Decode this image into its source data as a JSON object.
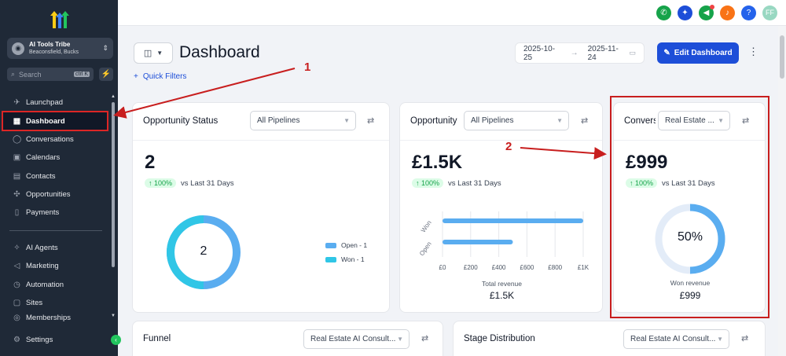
{
  "sidebar": {
    "account": {
      "name": "AI Tools Tribe",
      "location": "Beaconsfield, Bucks"
    },
    "search": {
      "placeholder": "Search",
      "shortcut": "ctrl K"
    },
    "items": [
      {
        "label": "Launchpad",
        "icon": "rocket-icon"
      },
      {
        "label": "Dashboard",
        "icon": "grid-icon"
      },
      {
        "label": "Conversations",
        "icon": "chat-icon"
      },
      {
        "label": "Calendars",
        "icon": "calendar-icon"
      },
      {
        "label": "Contacts",
        "icon": "contacts-icon"
      },
      {
        "label": "Opportunities",
        "icon": "opportunities-icon"
      },
      {
        "label": "Payments",
        "icon": "payments-icon"
      },
      {
        "label": "AI Agents",
        "icon": "sparkles-icon"
      },
      {
        "label": "Marketing",
        "icon": "megaphone-icon"
      },
      {
        "label": "Automation",
        "icon": "automation-icon"
      },
      {
        "label": "Sites",
        "icon": "sites-icon"
      },
      {
        "label": "Memberships",
        "icon": "memberships-icon"
      },
      {
        "label": "Settings",
        "icon": "gear-icon"
      }
    ]
  },
  "topbar": {
    "avatar_initials": "FF",
    "help": "?",
    "colors": {
      "phone": "#16a34a",
      "magic": "#1d4ed8",
      "announce": "#16a34a",
      "bell": "#f97316",
      "help": "#2563eb",
      "avatar": "#99d8c2"
    }
  },
  "header": {
    "title": "Dashboard",
    "quick_filters": "Quick Filters",
    "date_start": "2025-10-25",
    "date_end": "2025-11-24",
    "edit_label": "Edit Dashboard"
  },
  "cards": {
    "opportunity_status": {
      "title": "Opportunity Status",
      "select": "All Pipelines",
      "value": "2",
      "delta": "100%",
      "compare": "vs Last 31 Days",
      "donut_center": "2",
      "legend": [
        "Open - 1",
        "Won - 1"
      ],
      "chart_data": {
        "type": "pie",
        "categories": [
          "Open",
          "Won"
        ],
        "values": [
          1,
          1
        ]
      }
    },
    "opportunity": {
      "title": "Opportunity",
      "select": "All Pipelines",
      "value": "£1.5K",
      "delta": "100%",
      "compare": "vs Last 31 Days",
      "categories": [
        "Won",
        "Open"
      ],
      "ticks": [
        "£0",
        "£200",
        "£400",
        "£600",
        "£800",
        "£1K"
      ],
      "footer_label": "Total revenue",
      "footer_value": "£1.5K",
      "chart_data": {
        "type": "bar",
        "orientation": "horizontal",
        "categories": [
          "Won",
          "Open"
        ],
        "values": [
          1000,
          500
        ],
        "xlim": [
          0,
          1000
        ]
      }
    },
    "conversion": {
      "title": "Conversion",
      "select": "Real Estate ...",
      "value": "£999",
      "delta": "100%",
      "compare": "vs Last 31 Days",
      "gauge_label": "50%",
      "footer_label": "Won revenue",
      "footer_value": "£999",
      "chart_data": {
        "type": "pie",
        "categories": [
          "Won",
          "Other"
        ],
        "values": [
          50,
          50
        ]
      }
    },
    "funnel": {
      "title": "Funnel",
      "select": "Real Estate AI Consult..."
    },
    "stage_distribution": {
      "title": "Stage Distribution",
      "select": "Real Estate AI Consult..."
    }
  },
  "annotations": {
    "one": "1",
    "two": "2"
  },
  "colors": {
    "accent": "#1d4ed8",
    "donut_blue": "#5aadf0",
    "donut_cyan": "#30c6e6",
    "annotation_red": "#c81e1e"
  }
}
